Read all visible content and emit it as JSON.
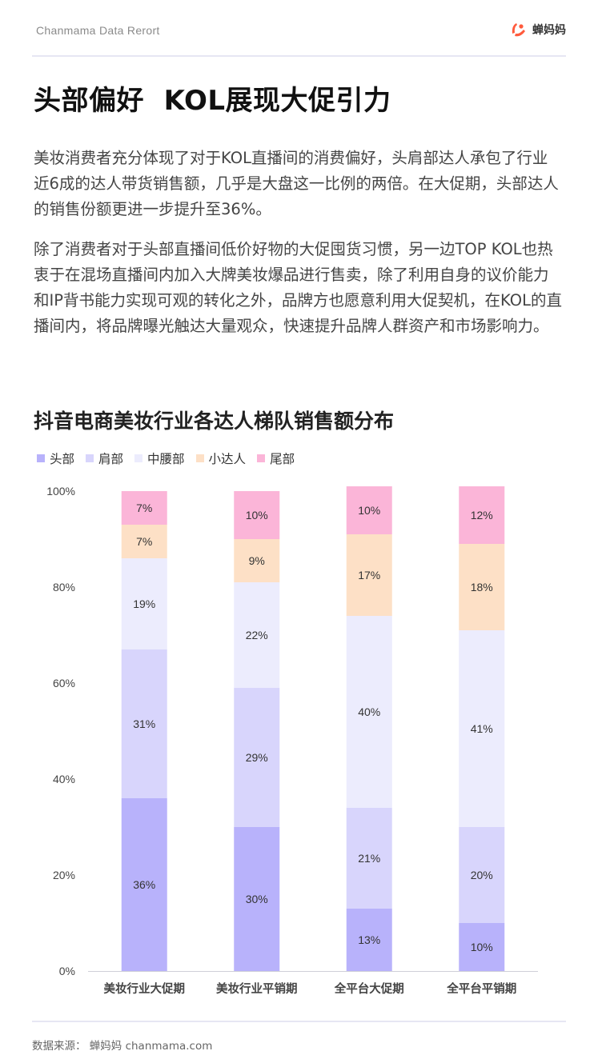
{
  "header": {
    "report_label": "Chanmama Data Rerort",
    "logo_text": "蝉妈妈",
    "logo_color": "#ff5a3c"
  },
  "headline": "头部偏好  KOL展现大促引力",
  "paragraphs": [
    "美妆消费者充分体现了对于KOL直播间的消费偏好，头肩部达人承包了行业近6成的达人带货销售额，几乎是大盘这一比例的两倍。在大促期，头部达人的销售份额更进一步提升至36%。",
    "除了消费者对于头部直播间低价好物的大促囤货习惯，另一边TOP KOL也热衷于在混场直播间内加入大牌美妆爆品进行售卖，除了利用自身的议价能力和IP背书能力实现可观的转化之外，品牌方也愿意利用大促契机，在KOL的直播间内，将品牌曝光触达大量观众，快速提升品牌人群资产和市场影响力。"
  ],
  "chart_data": {
    "type": "bar",
    "stacked": true,
    "title": "抖音电商美妆行业各达人梯队销售额分布",
    "categories": [
      "美妆行业大促期",
      "美妆行业平销期",
      "全平台大促期",
      "全平台平销期"
    ],
    "series": [
      {
        "name": "头部",
        "color": "#b8b2fb",
        "values": [
          36,
          30,
          13,
          10
        ]
      },
      {
        "name": "肩部",
        "color": "#d8d5fc",
        "values": [
          31,
          29,
          21,
          20
        ]
      },
      {
        "name": "中腰部",
        "color": "#ececfd",
        "values": [
          19,
          22,
          40,
          41
        ]
      },
      {
        "name": "小达人",
        "color": "#fde0c6",
        "values": [
          7,
          9,
          17,
          18
        ]
      },
      {
        "name": "尾部",
        "color": "#fbb5d8",
        "values": [
          7,
          10,
          10,
          12
        ]
      }
    ],
    "data_labels": [
      [
        "36%",
        "30%",
        "13%",
        "10%"
      ],
      [
        "31%",
        "29%",
        "21%",
        "20%"
      ],
      [
        "19%",
        "22%",
        "40%",
        "41%"
      ],
      [
        "7%",
        "9%",
        "17%",
        "18%"
      ],
      [
        "7%",
        "10%",
        "10%",
        "12%"
      ]
    ],
    "y_ticks": [
      "0%",
      "20%",
      "40%",
      "60%",
      "80%",
      "100%"
    ],
    "ylim": [
      0,
      100
    ],
    "legend_position": "top-left",
    "grid": false
  },
  "footer": {
    "source": "数据来源：  蝉妈妈  chanmama.com"
  }
}
